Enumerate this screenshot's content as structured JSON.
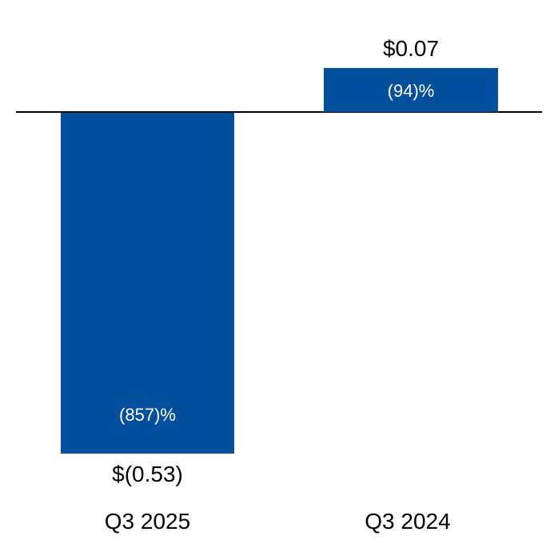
{
  "chart_data": {
    "type": "bar",
    "title": "",
    "categories": [
      "Q3 2025",
      "Q3 2024"
    ],
    "values": [
      -0.53,
      0.07
    ],
    "value_labels": [
      "$(0.53)",
      "$0.07"
    ],
    "percent_labels": [
      "(857)%",
      "(94)%"
    ],
    "bar_color": "#004F9C",
    "axis_line_color": "#000000",
    "value_label_color": "#000000",
    "percent_label_color": "#ffffff",
    "baseline": 0,
    "ylim": [
      -0.6,
      0.12
    ],
    "grid": false,
    "legend": false
  }
}
